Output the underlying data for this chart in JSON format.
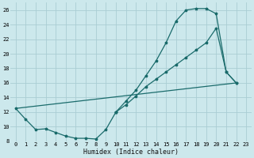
{
  "xlabel": "Humidex (Indice chaleur)",
  "background_color": "#cce8ec",
  "grid_color": "#aacdd4",
  "line_color": "#1a6b6b",
  "xlim": [
    -0.5,
    23.5
  ],
  "ylim": [
    8,
    27
  ],
  "xticks": [
    0,
    1,
    2,
    3,
    4,
    5,
    6,
    7,
    8,
    9,
    10,
    11,
    12,
    13,
    14,
    15,
    16,
    17,
    18,
    19,
    20,
    21,
    22,
    23
  ],
  "yticks": [
    8,
    10,
    12,
    14,
    16,
    18,
    20,
    22,
    24,
    26
  ],
  "curve_bottom": {
    "x": [
      0,
      1,
      2,
      3,
      4,
      5,
      6,
      7,
      8,
      9,
      10
    ],
    "y": [
      12.5,
      11.0,
      9.6,
      9.7,
      9.2,
      8.7,
      8.4,
      8.4,
      8.3,
      9.6,
      12.0
    ]
  },
  "curve_top": {
    "x": [
      10,
      11,
      12,
      13,
      14,
      15,
      16,
      17,
      18,
      19,
      20,
      21,
      22
    ],
    "y": [
      12.0,
      13.5,
      15.0,
      17.0,
      19.0,
      21.5,
      24.5,
      26.0,
      26.2,
      26.2,
      25.5,
      17.5,
      16.0
    ]
  },
  "curve_mid": {
    "x": [
      10,
      11,
      12,
      13,
      14,
      15,
      16,
      17,
      18,
      19,
      20,
      21,
      22
    ],
    "y": [
      12.0,
      13.0,
      14.2,
      15.5,
      16.5,
      17.5,
      18.5,
      19.5,
      20.5,
      21.5,
      23.5,
      17.5,
      16.0
    ]
  },
  "line_straight": {
    "x": [
      0,
      22
    ],
    "y": [
      12.5,
      16.0
    ]
  }
}
